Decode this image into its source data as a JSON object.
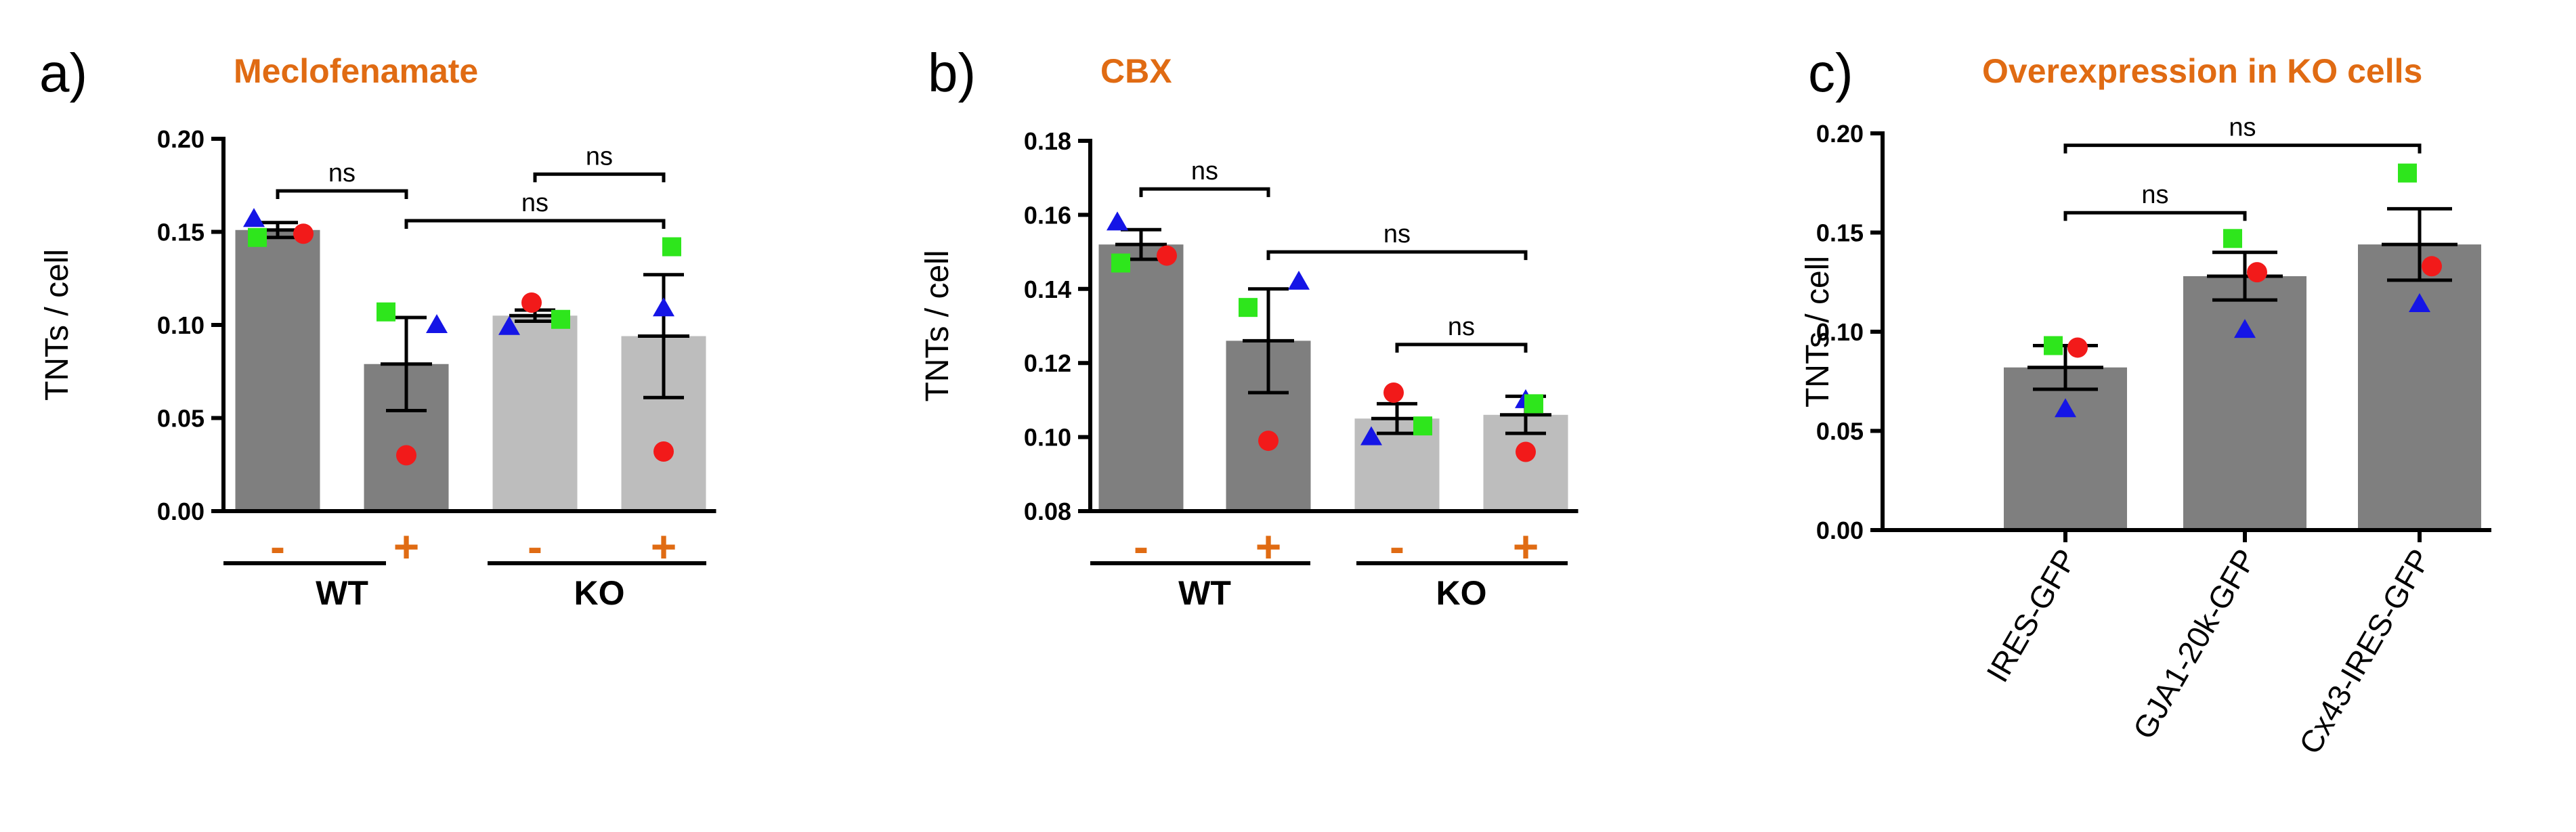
{
  "chart_data": [
    {
      "type": "bar",
      "panel": "a)",
      "title": "Meclofenamate",
      "ylabel": "TNTs / cell",
      "ylim": [
        0,
        0.2
      ],
      "yticks": [
        0.0,
        0.05,
        0.1,
        0.15,
        0.2
      ],
      "ytick_labels": [
        "0.00",
        "0.05",
        "0.10",
        "0.15",
        "0.20"
      ],
      "categories": [
        "-",
        "+",
        "-",
        "+"
      ],
      "groups": [
        {
          "label": "WT",
          "bars": [
            0,
            1
          ]
        },
        {
          "label": "KO",
          "bars": [
            2,
            3
          ]
        }
      ],
      "values": [
        0.151,
        0.079,
        0.105,
        0.094
      ],
      "errors": [
        0.004,
        0.025,
        0.003,
        0.033
      ],
      "bar_colors": [
        "#7f7f7f",
        "#7f7f7f",
        "#bdbdbd",
        "#bdbdbd"
      ],
      "points": {
        "triangle": [
          0.157,
          0.1,
          0.099,
          0.109
        ],
        "square": [
          0.147,
          0.107,
          0.103,
          0.142
        ],
        "circle": [
          0.149,
          0.03,
          0.112,
          0.032
        ]
      },
      "point_colors": {
        "triangle": "#1515e6",
        "square": "#2ee61c",
        "circle": "#f21a1a"
      },
      "comparisons": [
        {
          "bars": [
            0,
            1
          ],
          "y": 0.172,
          "label": "ns"
        },
        {
          "bars": [
            2,
            3
          ],
          "y": 0.181,
          "label": "ns"
        },
        {
          "bars": [
            1,
            3
          ],
          "y": 0.156,
          "label": "ns"
        }
      ]
    },
    {
      "type": "bar",
      "panel": "b)",
      "title": "CBX",
      "ylabel": "TNTs / cell",
      "ylim": [
        0.08,
        0.18
      ],
      "yticks": [
        0.08,
        0.1,
        0.12,
        0.14,
        0.16,
        0.18
      ],
      "ytick_labels": [
        "0.08",
        "0.10",
        "0.12",
        "0.14",
        "0.16",
        "0.18"
      ],
      "categories": [
        "-",
        "+",
        "-",
        "+"
      ],
      "groups": [
        {
          "label": "WT",
          "bars": [
            0,
            1
          ]
        },
        {
          "label": "KO",
          "bars": [
            2,
            3
          ]
        }
      ],
      "values": [
        0.152,
        0.126,
        0.105,
        0.106
      ],
      "errors": [
        0.004,
        0.014,
        0.004,
        0.005
      ],
      "bar_colors": [
        "#7f7f7f",
        "#7f7f7f",
        "#bdbdbd",
        "#bdbdbd"
      ],
      "points": {
        "triangle": [
          0.158,
          0.142,
          0.1,
          0.11
        ],
        "square": [
          0.147,
          0.135,
          0.103,
          0.109
        ],
        "circle": [
          0.149,
          0.099,
          0.112,
          0.096
        ]
      },
      "point_colors": {
        "triangle": "#1515e6",
        "square": "#2ee61c",
        "circle": "#f21a1a"
      },
      "comparisons": [
        {
          "bars": [
            0,
            1
          ],
          "y": 0.167,
          "label": "ns"
        },
        {
          "bars": [
            1,
            3
          ],
          "y": 0.15,
          "label": "ns"
        },
        {
          "bars": [
            2,
            3
          ],
          "y": 0.125,
          "label": "ns"
        }
      ]
    },
    {
      "type": "bar",
      "panel": "c)",
      "title": "Overexpression in KO cells",
      "ylabel": "TNTs / cell",
      "ylim": [
        0,
        0.2
      ],
      "yticks": [
        0.0,
        0.05,
        0.1,
        0.15,
        0.2
      ],
      "ytick_labels": [
        "0.00",
        "0.05",
        "0.10",
        "0.15",
        "0.20"
      ],
      "categories": [
        "IRES-GFP",
        "GJA1-20k-GFP",
        "Cx43-IRES-GFP"
      ],
      "values": [
        0.082,
        0.128,
        0.144
      ],
      "errors": [
        0.011,
        0.012,
        0.018
      ],
      "bar_colors": [
        "#7f7f7f",
        "#7f7f7f",
        "#7f7f7f"
      ],
      "points": {
        "triangle": [
          0.061,
          0.101,
          0.114
        ],
        "square": [
          0.093,
          0.147,
          0.18
        ],
        "circle": [
          0.092,
          0.13,
          0.133
        ]
      },
      "point_colors": {
        "triangle": "#1515e6",
        "square": "#2ee61c",
        "circle": "#f21a1a"
      },
      "comparisons": [
        {
          "bars": [
            0,
            1
          ],
          "y": 0.16,
          "label": "ns"
        },
        {
          "bars": [
            0,
            2
          ],
          "y": 0.194,
          "label": "ns"
        }
      ]
    }
  ]
}
